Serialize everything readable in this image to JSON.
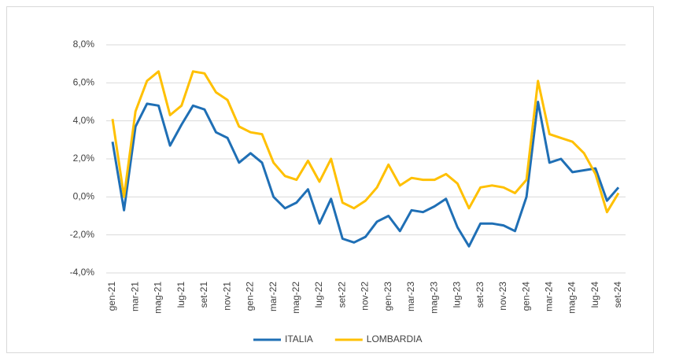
{
  "chart_data": {
    "type": "line",
    "categories": [
      "gen-21",
      null,
      "mar-21",
      null,
      "mag-21",
      null,
      "lug-21",
      null,
      "set-21",
      null,
      "nov-21",
      null,
      "gen-22",
      null,
      "mar-22",
      null,
      "mag-22",
      null,
      "lug-22",
      null,
      "set-22",
      null,
      "nov-22",
      null,
      "gen-23",
      null,
      "mar-23",
      null,
      "mag-23",
      null,
      "lug-23",
      null,
      "set-23",
      null,
      "nov-23",
      null,
      "gen-24",
      null,
      "mar-24",
      null,
      "mag-24",
      null,
      "lug-24",
      null,
      "set-24"
    ],
    "series": [
      {
        "name": "ITALIA",
        "color": "#1f6fb5",
        "values": [
          2.9,
          -0.7,
          3.7,
          4.9,
          4.8,
          2.7,
          3.8,
          4.8,
          4.6,
          3.4,
          3.1,
          1.8,
          2.3,
          1.8,
          0.0,
          -0.6,
          -0.3,
          0.4,
          -1.4,
          -0.1,
          -2.2,
          -2.4,
          -2.1,
          -1.3,
          -1.0,
          -1.8,
          -0.7,
          -0.8,
          -0.5,
          -0.1,
          -1.6,
          -2.6,
          -1.4,
          -1.4,
          -1.5,
          -1.8,
          0.0,
          5.0,
          1.8,
          2.0,
          1.3,
          1.4,
          1.5,
          -0.2,
          0.5
        ]
      },
      {
        "name": "LOMBARDIA",
        "color": "#ffc000",
        "values": [
          4.1,
          0.0,
          4.5,
          6.1,
          6.6,
          4.3,
          4.8,
          6.6,
          6.5,
          5.5,
          5.1,
          3.7,
          3.4,
          3.3,
          1.8,
          1.1,
          0.9,
          1.9,
          0.8,
          2.0,
          -0.3,
          -0.6,
          -0.2,
          0.5,
          1.7,
          0.6,
          1.0,
          0.9,
          0.9,
          1.2,
          0.7,
          -0.6,
          0.5,
          0.6,
          0.5,
          0.2,
          0.9,
          6.1,
          3.3,
          3.1,
          2.9,
          2.3,
          1.2,
          -0.8,
          0.2
        ]
      }
    ],
    "ylim": [
      -4,
      8
    ],
    "yticks": [
      {
        "value": -4,
        "label": "-4,0%"
      },
      {
        "value": -2,
        "label": "-2,0%"
      },
      {
        "value": 0,
        "label": "0,0%"
      },
      {
        "value": 2,
        "label": "2,0%"
      },
      {
        "value": 4,
        "label": "4,0%"
      },
      {
        "value": 6,
        "label": "6,0%"
      },
      {
        "value": 8,
        "label": "8,0%"
      }
    ],
    "grid": true
  }
}
